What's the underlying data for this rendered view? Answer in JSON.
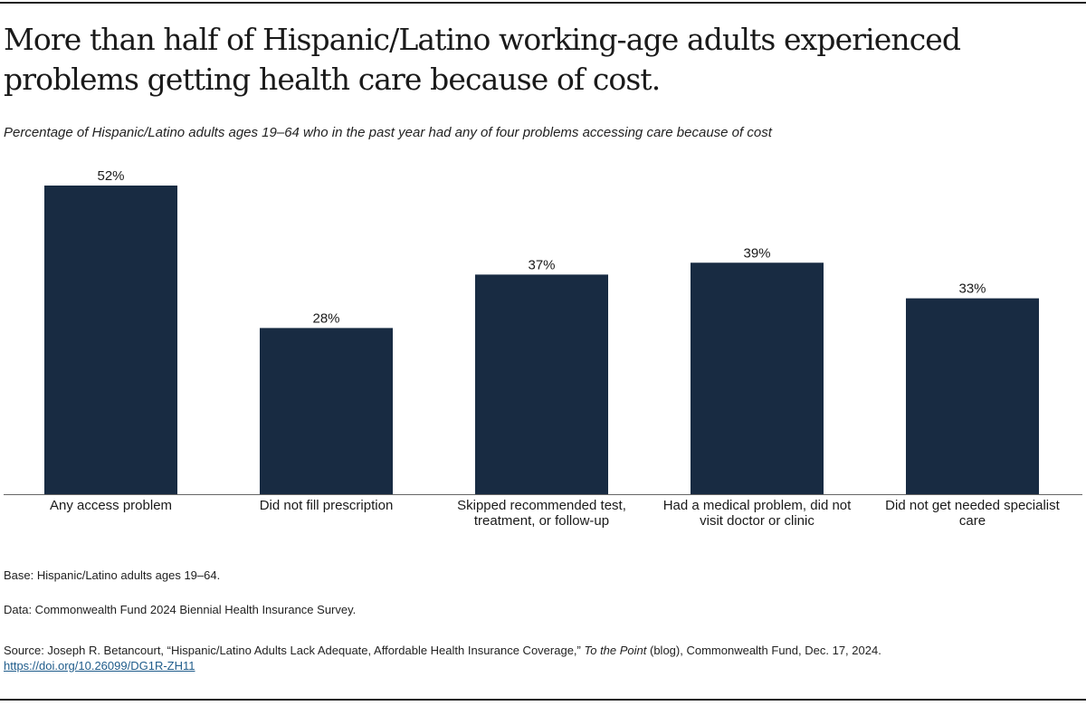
{
  "title": "More than half of Hispanic/Latino working-age adults experienced problems getting health care because of cost.",
  "subtitle": "Percentage of Hispanic/Latino adults ages 19–64 who in the past year had any of four problems accessing care because of cost",
  "chart_data": {
    "type": "bar",
    "title": "More than half of Hispanic/Latino working-age adults experienced problems getting health care because of cost.",
    "xlabel": "",
    "ylabel": "",
    "ylim": [
      0,
      52
    ],
    "grid": false,
    "categories": [
      [
        "Any access problem"
      ],
      [
        "Did not fill prescription"
      ],
      [
        "Skipped recommended test,",
        "treatment, or follow-up"
      ],
      [
        "Had a medical problem, did not",
        "visit doctor or clinic"
      ],
      [
        "Did not get needed specialist",
        "care"
      ]
    ],
    "values": [
      52,
      28,
      37,
      39,
      33
    ],
    "data_labels": [
      "52%",
      "28%",
      "37%",
      "39%",
      "33%"
    ],
    "bar_color": "#182b42"
  },
  "notes": {
    "base": "Base: Hispanic/Latino adults ages 19–64.",
    "data": "Data: Commonwealth Fund 2024 Biennial Health Insurance Survey.",
    "source_pre": "Source: Joseph R. Betancourt, “Hispanic/Latino Adults Lack Adequate, Affordable Health Insurance Coverage,” ",
    "source_italic": "To the Point",
    "source_post": " (blog), Commonwealth Fund, Dec. 17, 2024.",
    "link": "https://doi.org/10.26099/DG1R-ZH11"
  }
}
